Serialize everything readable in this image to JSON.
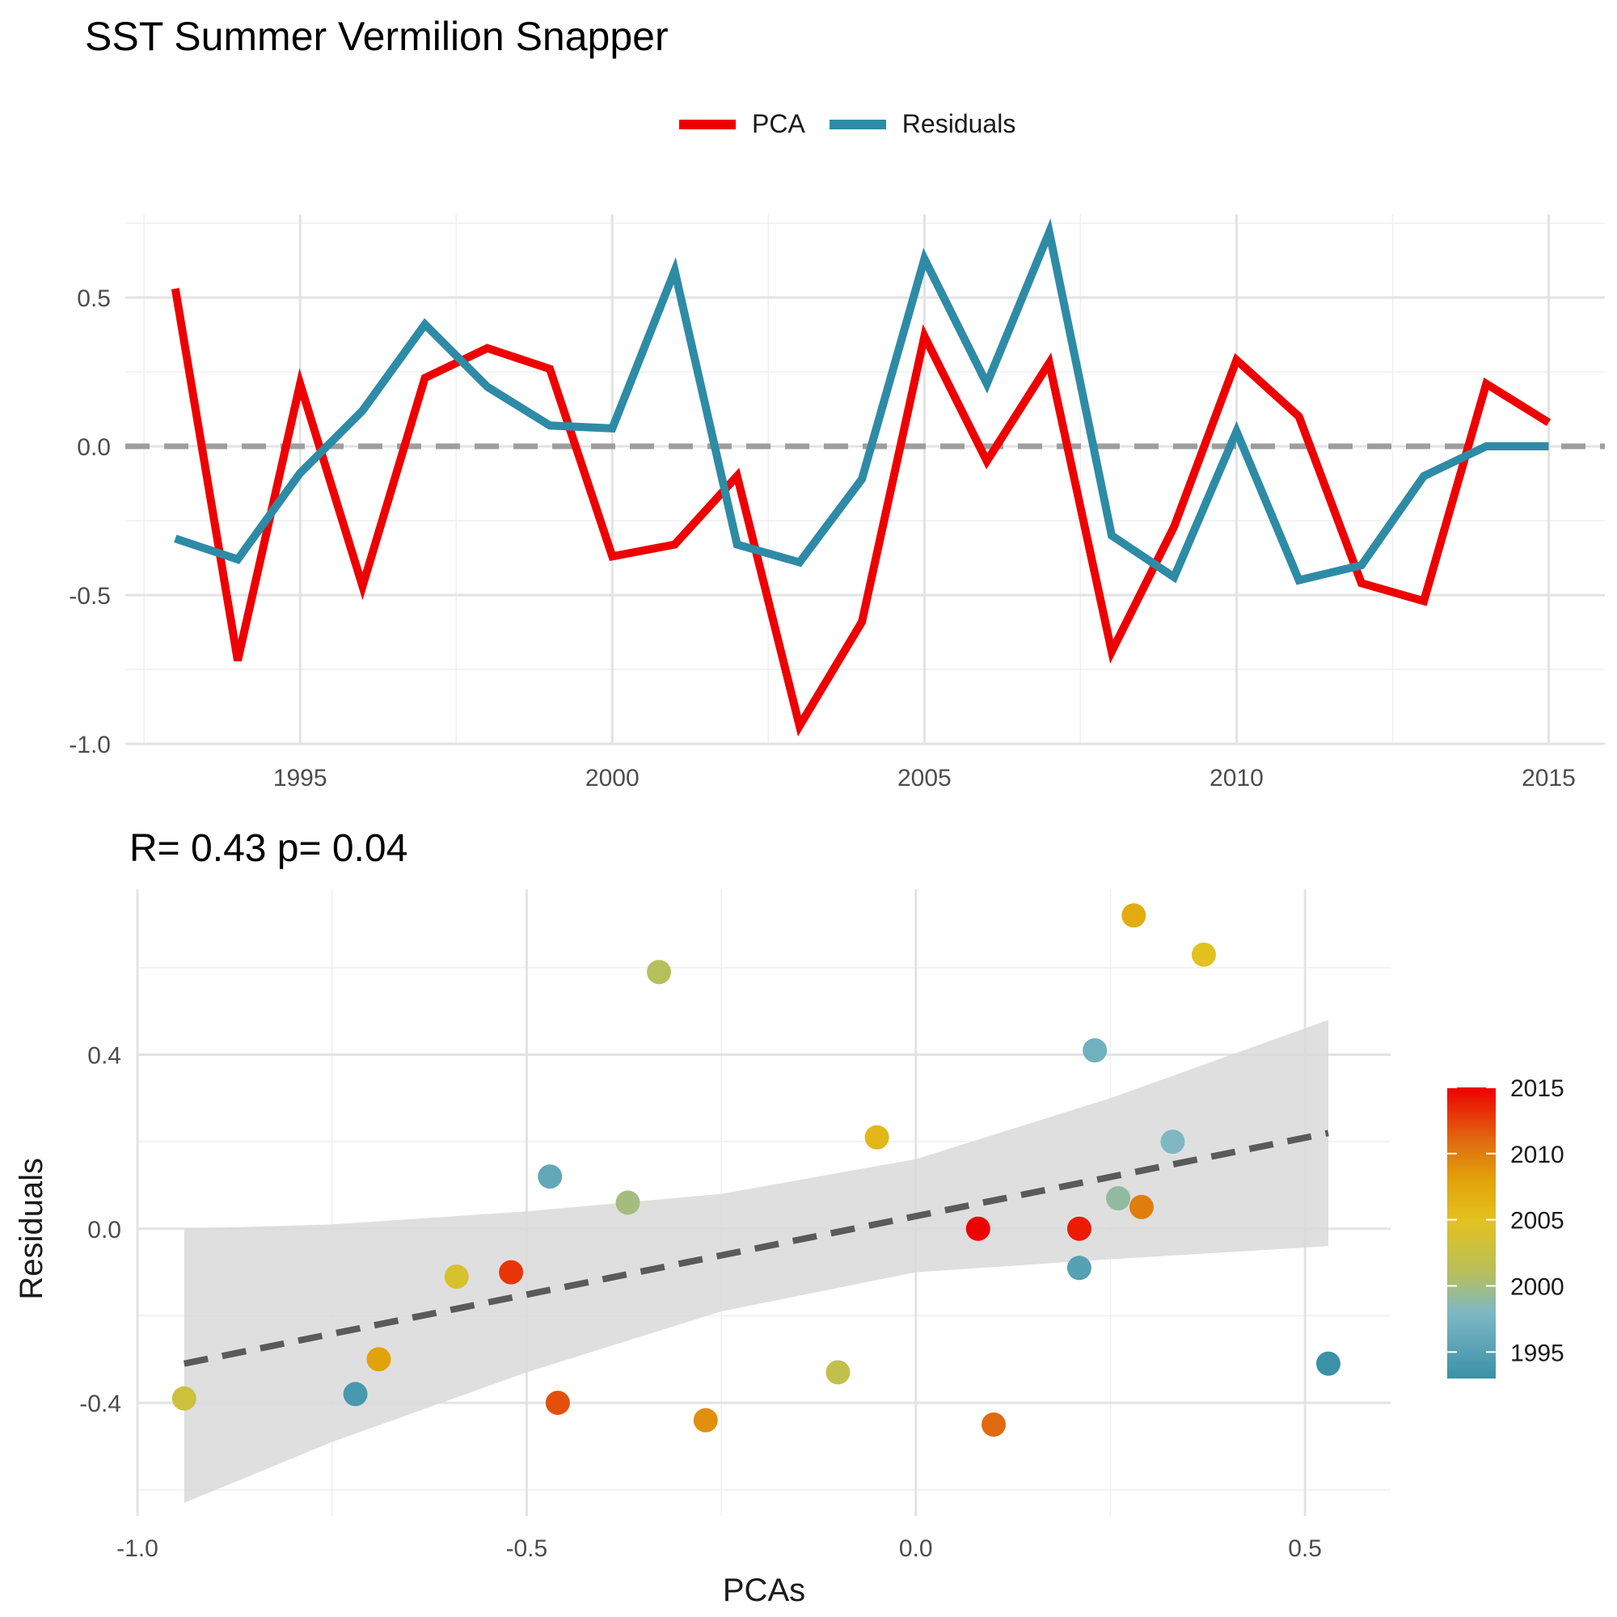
{
  "title": "SST Summer Vermilion Snapper",
  "chart_data": [
    {
      "type": "line",
      "x": [
        1993,
        1994,
        1995,
        1996,
        1997,
        1998,
        1999,
        2000,
        2001,
        2002,
        2003,
        2004,
        2005,
        2006,
        2007,
        2008,
        2009,
        2010,
        2011,
        2012,
        2013,
        2014,
        2015
      ],
      "series": [
        {
          "name": "PCA",
          "color": "#EE0000",
          "values": [
            0.53,
            -0.72,
            0.21,
            -0.47,
            0.23,
            0.33,
            0.26,
            -0.37,
            -0.33,
            -0.1,
            -0.94,
            -0.59,
            0.37,
            -0.05,
            0.28,
            -0.69,
            -0.27,
            0.29,
            0.1,
            -0.46,
            -0.52,
            0.21,
            0.08
          ]
        },
        {
          "name": "Residuals",
          "color": "#2E8BA6",
          "values": [
            -0.31,
            -0.38,
            -0.09,
            0.12,
            0.41,
            0.2,
            0.07,
            0.06,
            0.59,
            -0.33,
            -0.39,
            -0.11,
            0.63,
            0.21,
            0.72,
            -0.3,
            -0.44,
            0.05,
            -0.45,
            -0.4,
            -0.1,
            0.0,
            0.0
          ]
        }
      ],
      "x_ticks": [
        "1995",
        "2000",
        "2005",
        "2010",
        "2015"
      ],
      "y_ticks": [
        "-1.0",
        "-0.5",
        "0.0",
        "0.5"
      ],
      "xlim": [
        1992.2,
        2015.9
      ],
      "ylim": [
        -1.0,
        0.78
      ],
      "reference_line": {
        "y": 0,
        "style": "dashed",
        "color": "#9E9E9E"
      },
      "legend_position": "top"
    },
    {
      "type": "scatter",
      "title": "R= 0.43  p= 0.04",
      "xlabel": "PCAs",
      "ylabel": "Residuals",
      "xlim": [
        -1.0,
        0.61
      ],
      "ylim": [
        -0.66,
        0.78
      ],
      "x_ticks": [
        "-1.0",
        "-0.5",
        "0.0",
        "0.5"
      ],
      "y_ticks": [
        "-0.4",
        "0.0",
        "0.4"
      ],
      "points": [
        {
          "year": 1993,
          "x": 0.53,
          "y": -0.31
        },
        {
          "year": 1994,
          "x": -0.72,
          "y": -0.38
        },
        {
          "year": 1995,
          "x": 0.21,
          "y": -0.09
        },
        {
          "year": 1996,
          "x": -0.47,
          "y": 0.12
        },
        {
          "year": 1997,
          "x": 0.23,
          "y": 0.41
        },
        {
          "year": 1998,
          "x": 0.33,
          "y": 0.2
        },
        {
          "year": 1999,
          "x": 0.26,
          "y": 0.07
        },
        {
          "year": 2000,
          "x": -0.37,
          "y": 0.06
        },
        {
          "year": 2001,
          "x": -0.33,
          "y": 0.59
        },
        {
          "year": 2002,
          "x": -0.1,
          "y": -0.33
        },
        {
          "year": 2003,
          "x": -0.94,
          "y": -0.39
        },
        {
          "year": 2004,
          "x": -0.59,
          "y": -0.11
        },
        {
          "year": 2005,
          "x": 0.37,
          "y": 0.63
        },
        {
          "year": 2006,
          "x": -0.05,
          "y": 0.21
        },
        {
          "year": 2007,
          "x": 0.28,
          "y": 0.72
        },
        {
          "year": 2008,
          "x": -0.69,
          "y": -0.3
        },
        {
          "year": 2009,
          "x": -0.27,
          "y": -0.44
        },
        {
          "year": 2010,
          "x": 0.29,
          "y": 0.05
        },
        {
          "year": 2011,
          "x": 0.1,
          "y": -0.45
        },
        {
          "year": 2012,
          "x": -0.46,
          "y": -0.4
        },
        {
          "year": 2013,
          "x": -0.52,
          "y": -0.1
        },
        {
          "year": 2014,
          "x": 0.21,
          "y": 0.0
        },
        {
          "year": 2015,
          "x": 0.08,
          "y": 0.0
        }
      ],
      "trend_line": {
        "x": [
          -0.94,
          0.53
        ],
        "y": [
          -0.31,
          0.22
        ],
        "style": "dashed",
        "color": "#5A5A5A"
      },
      "confidence_band": {
        "x": [
          -0.94,
          -0.75,
          -0.5,
          -0.25,
          0.0,
          0.25,
          0.53
        ],
        "lower": [
          -0.63,
          -0.49,
          -0.33,
          -0.19,
          -0.1,
          -0.07,
          -0.04
        ],
        "upper": [
          0.0,
          0.01,
          0.04,
          0.08,
          0.16,
          0.3,
          0.48
        ],
        "color": "#D9D9D9"
      },
      "color_scale": {
        "labels": [
          "2015",
          "2010",
          "2005",
          "2000",
          "1995"
        ],
        "values": [
          2015,
          2010,
          2005,
          2000,
          1995
        ],
        "range": [
          1993,
          2015
        ],
        "stops": [
          {
            "year": 1993,
            "color": "#3A91A8"
          },
          {
            "year": 1998,
            "color": "#7FB8C4"
          },
          {
            "year": 2001,
            "color": "#B7BF5C"
          },
          {
            "year": 2005,
            "color": "#E3C11E"
          },
          {
            "year": 2008,
            "color": "#E2A20A"
          },
          {
            "year": 2011,
            "color": "#E06A10"
          },
          {
            "year": 2015,
            "color": "#EE0000"
          }
        ]
      }
    }
  ]
}
